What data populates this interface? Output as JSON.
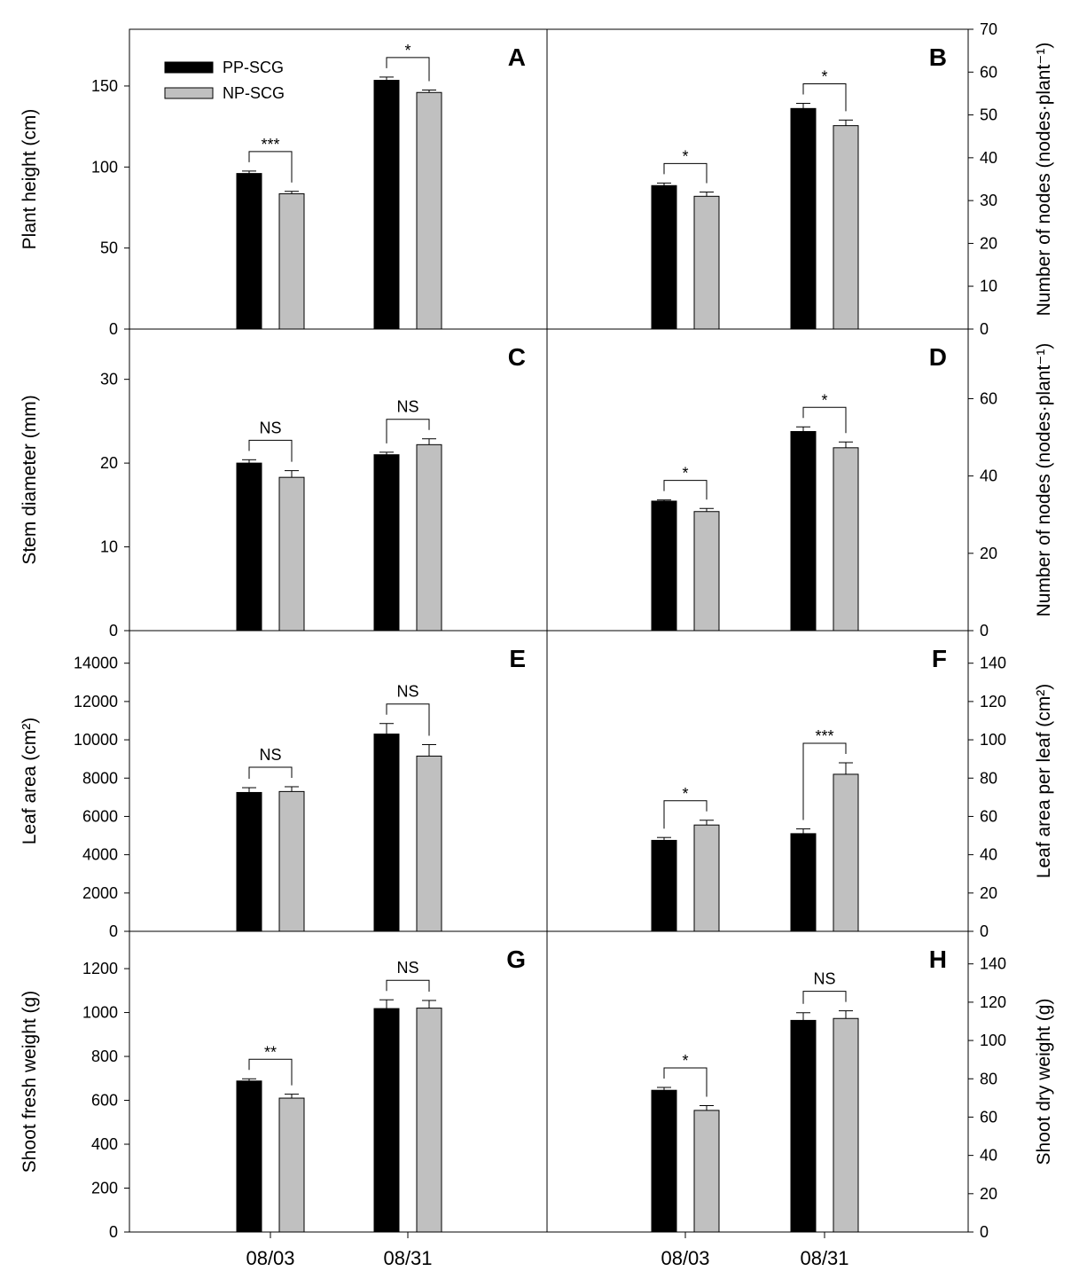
{
  "colors": {
    "pp": "#000000",
    "np": "#c0c0c0",
    "axis": "#000000"
  },
  "legend": [
    {
      "key": "pp",
      "label": "PP-SCG"
    },
    {
      "key": "np",
      "label": "NP-SCG"
    }
  ],
  "chart_data": [
    {
      "id": "A",
      "letter": "A",
      "type": "bar",
      "ylabel": "Plant height (cm)",
      "ylim": [
        0,
        185
      ],
      "yticks": [
        0,
        50,
        100,
        150
      ],
      "categories": [
        "08/03",
        "08/31"
      ],
      "series": [
        {
          "name": "PP-SCG",
          "values": [
            96,
            153.5
          ],
          "errors": [
            1.5,
            2
          ]
        },
        {
          "name": "NP-SCG",
          "values": [
            83.5,
            146
          ],
          "errors": [
            1.5,
            1.5
          ]
        }
      ],
      "significance": [
        "***",
        "*"
      ],
      "legend": "top-left"
    },
    {
      "id": "B",
      "letter": "B",
      "type": "bar",
      "ylabel": "Number of nodes (nodes·plant⁻¹)",
      "ylim": [
        0,
        70
      ],
      "yticks": [
        0,
        10,
        20,
        30,
        40,
        50,
        60,
        70
      ],
      "categories": [
        "08/03",
        "08/31"
      ],
      "series": [
        {
          "name": "PP-SCG",
          "values": [
            33.5,
            51.5
          ],
          "errors": [
            0.6,
            1.2
          ]
        },
        {
          "name": "NP-SCG",
          "values": [
            31,
            47.5
          ],
          "errors": [
            1,
            1.3
          ]
        }
      ],
      "significance": [
        "*",
        "*"
      ]
    },
    {
      "id": "C",
      "letter": "C",
      "type": "bar",
      "ylabel": "Stem diameter (mm)",
      "ylim": [
        0,
        36
      ],
      "yticks": [
        0,
        10,
        20,
        30
      ],
      "categories": [
        "08/03",
        "08/31"
      ],
      "series": [
        {
          "name": "PP-SCG",
          "values": [
            20,
            21
          ],
          "errors": [
            0.4,
            0.3
          ]
        },
        {
          "name": "NP-SCG",
          "values": [
            18.3,
            22.2
          ],
          "errors": [
            0.8,
            0.7
          ]
        }
      ],
      "significance": [
        "NS",
        "NS"
      ]
    },
    {
      "id": "D",
      "letter": "D",
      "type": "bar",
      "ylabel": "Number of nodes (nodes·plant⁻¹)",
      "ylim": [
        0,
        78
      ],
      "yticks": [
        0,
        20,
        40,
        60
      ],
      "categories": [
        "08/03",
        "08/31"
      ],
      "series": [
        {
          "name": "PP-SCG",
          "values": [
            33.5,
            51.5
          ],
          "errors": [
            0.3,
            1.2
          ]
        },
        {
          "name": "NP-SCG",
          "values": [
            30.8,
            47.3
          ],
          "errors": [
            0.8,
            1.5
          ]
        }
      ],
      "significance": [
        "*",
        "*"
      ]
    },
    {
      "id": "E",
      "letter": "E",
      "type": "bar",
      "ylabel": "Leaf area (cm²)",
      "ylim": [
        0,
        15700
      ],
      "yticks": [
        0,
        2000,
        4000,
        6000,
        8000,
        10000,
        12000,
        14000
      ],
      "categories": [
        "08/03",
        "08/31"
      ],
      "series": [
        {
          "name": "PP-SCG",
          "values": [
            7250,
            10300
          ],
          "errors": [
            250,
            550
          ]
        },
        {
          "name": "NP-SCG",
          "values": [
            7300,
            9150
          ],
          "errors": [
            250,
            600
          ]
        }
      ],
      "significance": [
        "NS",
        "NS"
      ]
    },
    {
      "id": "F",
      "letter": "F",
      "type": "bar",
      "ylabel": "Leaf area per leaf (cm²)",
      "ylim": [
        0,
        157
      ],
      "yticks": [
        0,
        20,
        40,
        60,
        80,
        100,
        120,
        140
      ],
      "categories": [
        "08/03",
        "08/31"
      ],
      "series": [
        {
          "name": "PP-SCG",
          "values": [
            47.5,
            51
          ],
          "errors": [
            1.5,
            2.5
          ]
        },
        {
          "name": "NP-SCG",
          "values": [
            55.5,
            82
          ],
          "errors": [
            2.5,
            6
          ]
        }
      ],
      "significance": [
        "*",
        "***"
      ]
    },
    {
      "id": "G",
      "letter": "G",
      "type": "bar",
      "ylabel": "Shoot fresh weight (g)",
      "ylim": [
        0,
        1370
      ],
      "yticks": [
        0,
        200,
        400,
        600,
        800,
        1000,
        1200
      ],
      "categories": [
        "08/03",
        "08/31"
      ],
      "series": [
        {
          "name": "PP-SCG",
          "values": [
            688,
            1018
          ],
          "errors": [
            10,
            40
          ]
        },
        {
          "name": "NP-SCG",
          "values": [
            610,
            1020
          ],
          "errors": [
            18,
            35
          ]
        }
      ],
      "significance": [
        "**",
        "NS"
      ]
    },
    {
      "id": "H",
      "letter": "H",
      "type": "bar",
      "ylabel": "Shoot dry weight (g)",
      "ylim": [
        0,
        157
      ],
      "yticks": [
        0,
        20,
        40,
        60,
        80,
        100,
        120,
        140
      ],
      "categories": [
        "08/03",
        "08/31"
      ],
      "series": [
        {
          "name": "PP-SCG",
          "values": [
            74,
            110.5
          ],
          "errors": [
            1.5,
            4
          ]
        },
        {
          "name": "NP-SCG",
          "values": [
            63.5,
            111.5
          ],
          "errors": [
            2.5,
            4
          ]
        }
      ],
      "significance": [
        "*",
        "NS"
      ]
    }
  ]
}
